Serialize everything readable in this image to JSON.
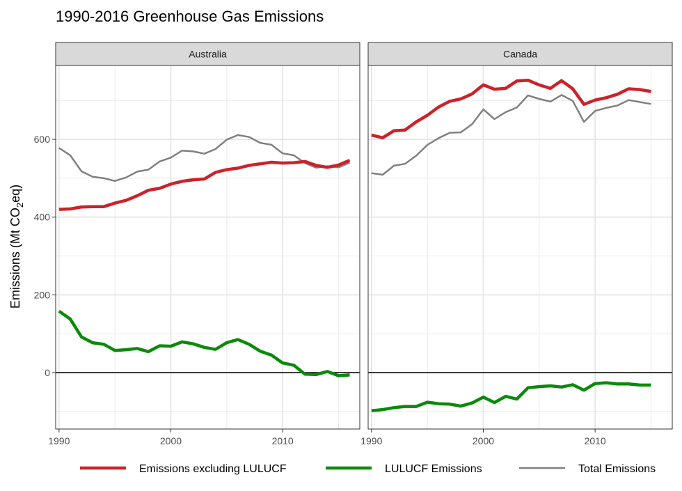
{
  "chart_data": {
    "type": "line",
    "title": "1990-2016 Greenhouse Gas Emissions",
    "ylabel": {
      "prefix": "Emissions (Mt CO",
      "sub": "2",
      "suffix": "eq)"
    },
    "xlabel": "",
    "xlim": [
      1989.7,
      2016.9
    ],
    "ylim": [
      -145,
      790
    ],
    "xticks": [
      1990,
      2000,
      2010
    ],
    "yticks": [
      0,
      200,
      400,
      600
    ],
    "grid": true,
    "zero_line": true,
    "legend_position": "bottom",
    "series_styles": [
      {
        "name": "Emissions excluding LULUCF",
        "color": "#cc2229",
        "width": 4.5
      },
      {
        "name": "LULUCF Emissions",
        "color": "#0b8a0b",
        "width": 4.5
      },
      {
        "name": "Total Emissions",
        "color": "#808080",
        "width": 2.5
      }
    ],
    "panels": [
      {
        "label": "Australia",
        "x": [
          1990,
          1991,
          1992,
          1993,
          1994,
          1995,
          1996,
          1997,
          1998,
          1999,
          2000,
          2001,
          2002,
          2003,
          2004,
          2005,
          2006,
          2007,
          2008,
          2009,
          2010,
          2011,
          2012,
          2013,
          2014,
          2015,
          2016
        ],
        "series": [
          {
            "name": "Emissions excluding LULUCF",
            "values": [
              420,
              421,
              426,
              427,
              427,
              436,
              443,
              455,
              469,
              474,
              485,
              492,
              496,
              498,
              515,
              522,
              526,
              533,
              537,
              541,
              539,
              540,
              543,
              533,
              528,
              534,
              546
            ]
          },
          {
            "name": "LULUCF Emissions",
            "values": [
              158,
              138,
              92,
              77,
              73,
              57,
              59,
              62,
              54,
              69,
              68,
              79,
              74,
              65,
              60,
              77,
              85,
              73,
              55,
              45,
              25,
              19,
              -4,
              -5,
              3,
              -8,
              -6
            ]
          },
          {
            "name": "Total Emissions",
            "values": [
              578,
              559,
              518,
              504,
              500,
              493,
              502,
              517,
              522,
              543,
              553,
              571,
              569,
              563,
              575,
              599,
              611,
              606,
              591,
              586,
              564,
              559,
              539,
              527,
              531,
              528,
              540
            ]
          }
        ]
      },
      {
        "label": "Canada",
        "x": [
          1990,
          1991,
          1992,
          1993,
          1994,
          1995,
          1996,
          1997,
          1998,
          1999,
          2000,
          2001,
          2002,
          2003,
          2004,
          2005,
          2006,
          2007,
          2008,
          2009,
          2010,
          2011,
          2012,
          2013,
          2014,
          2015
        ],
        "series": [
          {
            "name": "Emissions excluding LULUCF",
            "values": [
              611,
              604,
              622,
              624,
              645,
              662,
              683,
              698,
              704,
              717,
              740,
              729,
              731,
              750,
              752,
              740,
              731,
              751,
              730,
              690,
              701,
              707,
              716,
              730,
              728,
              723
            ]
          },
          {
            "name": "LULUCF Emissions",
            "values": [
              -98,
              -95,
              -90,
              -87,
              -87,
              -76,
              -80,
              -81,
              -86,
              -78,
              -63,
              -77,
              -61,
              -68,
              -39,
              -36,
              -34,
              -37,
              -31,
              -45,
              -28,
              -26,
              -29,
              -29,
              -32,
              -32
            ]
          },
          {
            "name": "Total Emissions",
            "values": [
              513,
              509,
              532,
              537,
              558,
              586,
              603,
              617,
              618,
              639,
              677,
              652,
              670,
              682,
              713,
              704,
              697,
              714,
              699,
              645,
              673,
              681,
              687,
              701,
              696,
              691
            ]
          }
        ]
      }
    ]
  }
}
